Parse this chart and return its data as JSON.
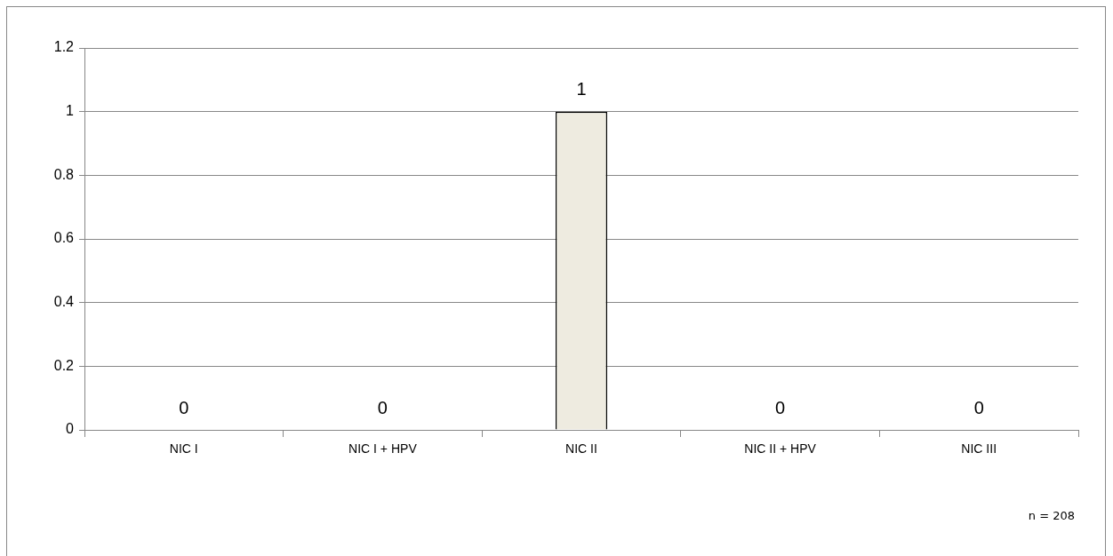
{
  "chart_data": {
    "type": "bar",
    "categories": [
      "NIC I",
      "NIC I + HPV",
      "NIC II",
      "NIC II + HPV",
      "NIC III"
    ],
    "values": [
      0,
      0,
      1,
      0,
      0
    ],
    "color": "#eeebe0",
    "ylim": [
      0,
      1.2
    ],
    "yticks": [
      0,
      0.2,
      0.4,
      0.6,
      0.8,
      1,
      1.2
    ],
    "grid": "y",
    "data_labels": true,
    "annotations": [
      "n = 208"
    ]
  }
}
